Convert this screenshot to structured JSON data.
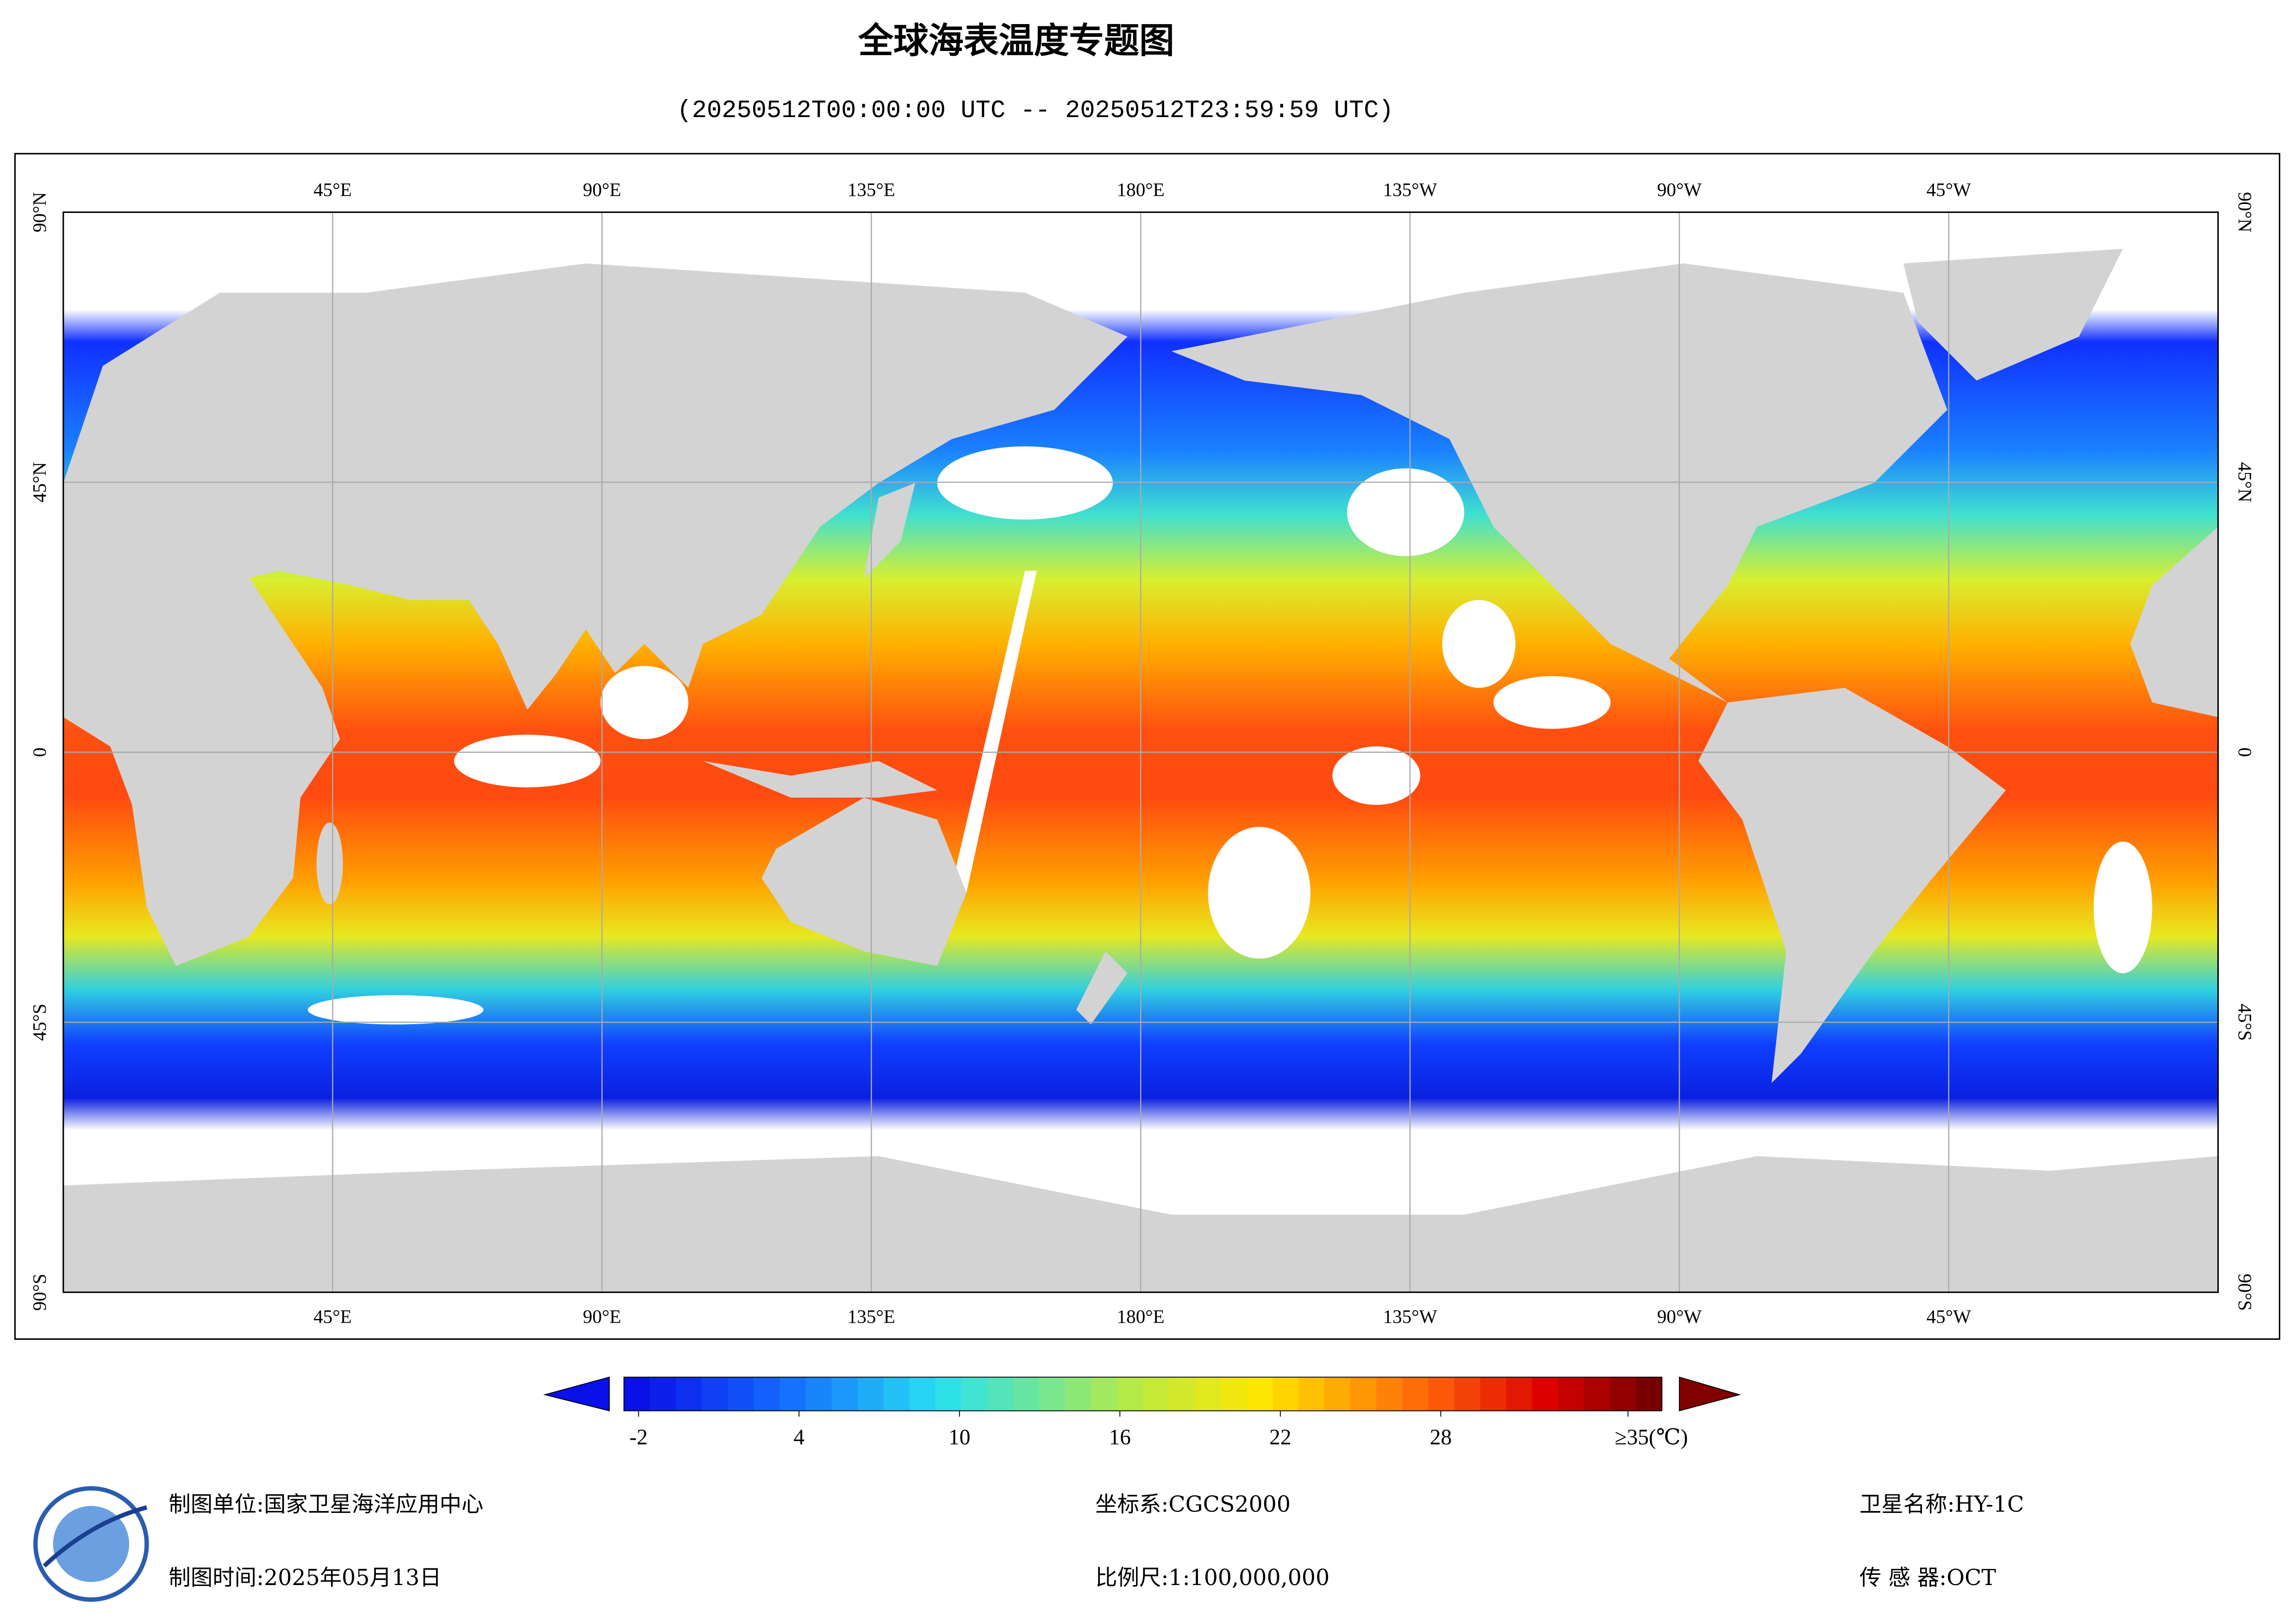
{
  "title": "全球海表温度专题图",
  "subtitle": "(20250512T00:00:00 UTC -- 20250512T23:59:59 UTC)",
  "map": {
    "lon_ticks": [
      {
        "value": 45,
        "label": "45°E"
      },
      {
        "value": 90,
        "label": "90°E"
      },
      {
        "value": 135,
        "label": "135°E"
      },
      {
        "value": 180,
        "label": "180°E"
      },
      {
        "value": 225,
        "label": "135°W"
      },
      {
        "value": 270,
        "label": "90°W"
      },
      {
        "value": 315,
        "label": "45°W"
      }
    ],
    "lat_ticks": [
      {
        "value": 90,
        "label": "90°N"
      },
      {
        "value": 45,
        "label": "45°N"
      },
      0,
      {
        "value": -45,
        "label": "45°S"
      },
      {
        "value": -90,
        "label": "90°S"
      }
    ]
  },
  "colorbar": {
    "ticks": [
      -2,
      4,
      10,
      16,
      22,
      28,
      {
        "value": 35,
        "label": "≥35(℃)"
      }
    ]
  },
  "footer": {
    "producer": "制图单位:国家卫星海洋应用中心",
    "date": "制图时间:2025年05月13日",
    "crs": "坐标系:CGCS2000",
    "scale": "比例尺:1:100,000,000",
    "satellite": "卫星名称:HY-1C",
    "sensor": "传 感 器:OCT"
  }
}
